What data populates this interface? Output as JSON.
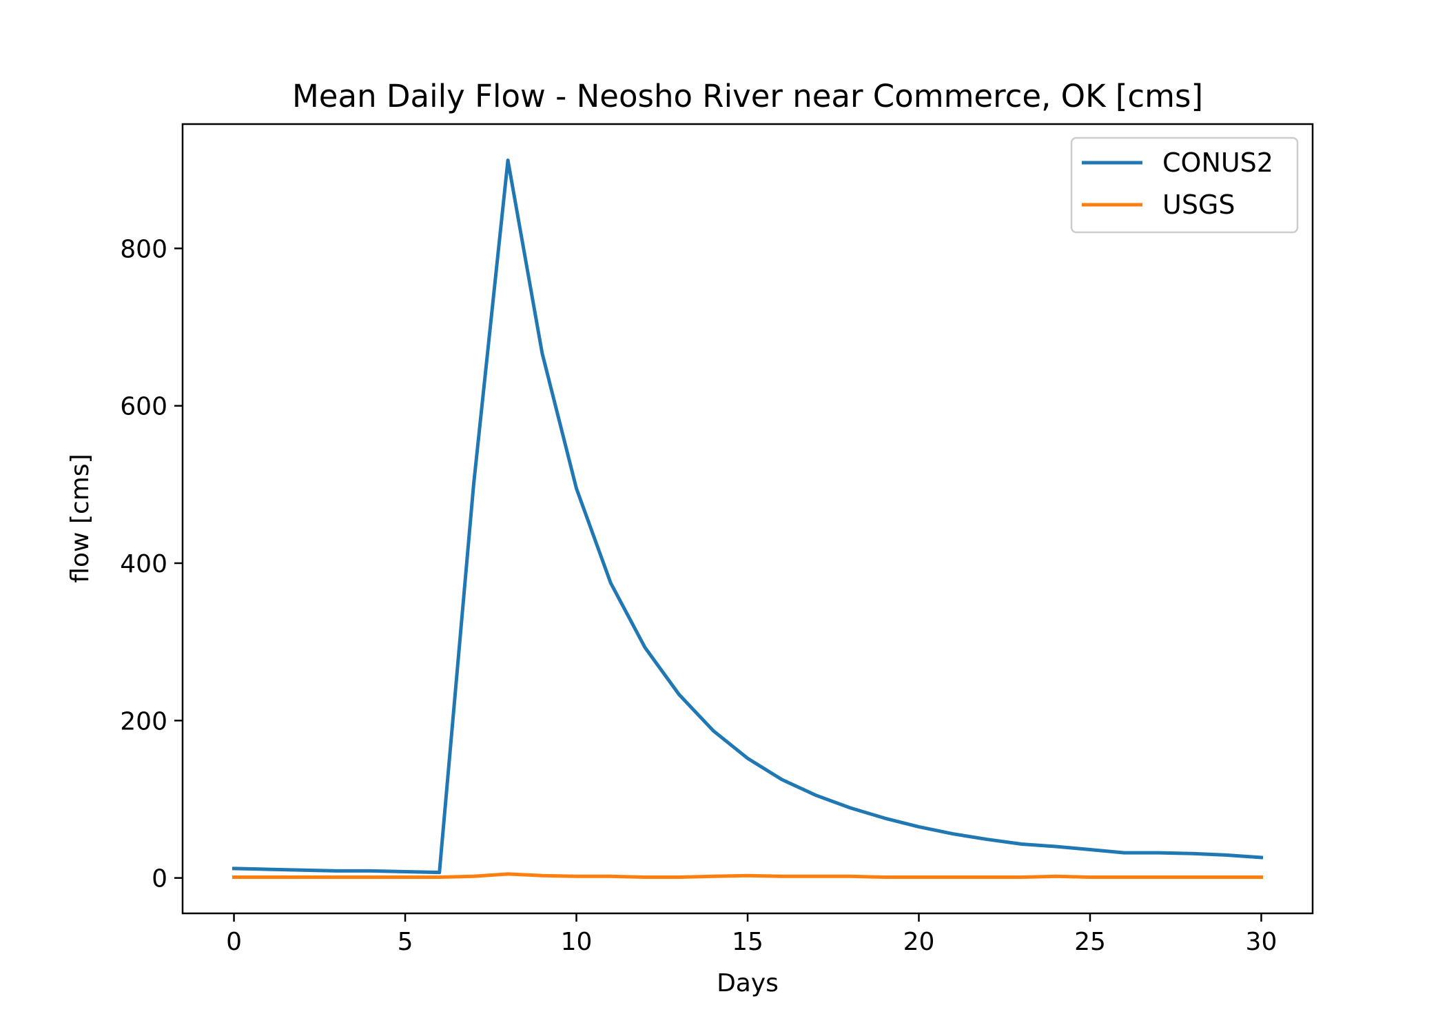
{
  "chart_data": {
    "type": "line",
    "title": "Mean Daily Flow - Neosho River near Commerce, OK [cms]",
    "xlabel": "Days",
    "ylabel": "flow [cms]",
    "xlim": [
      -1.5,
      31.5
    ],
    "ylim": [
      -45,
      958
    ],
    "xticks": [
      0,
      5,
      10,
      15,
      20,
      25,
      30
    ],
    "yticks": [
      0,
      200,
      400,
      600,
      800
    ],
    "grid": false,
    "legend_position": "top-right",
    "x": [
      0,
      1,
      2,
      3,
      4,
      5,
      6,
      7,
      8,
      9,
      10,
      11,
      12,
      13,
      14,
      15,
      16,
      17,
      18,
      19,
      20,
      21,
      22,
      23,
      24,
      25,
      26,
      27,
      28,
      29,
      30
    ],
    "series": [
      {
        "name": "CONUS2",
        "color": "#1f77b4",
        "values": [
          12,
          11,
          10,
          9,
          9,
          8,
          7,
          500,
          912,
          667,
          495,
          375,
          293,
          233,
          187,
          152,
          125,
          105,
          89,
          76,
          65,
          56,
          49,
          43,
          40,
          36,
          32,
          32,
          31,
          29,
          26
        ]
      },
      {
        "name": "USGS",
        "color": "#ff7f0e",
        "values": [
          1,
          1,
          1,
          1,
          1,
          1,
          1,
          2,
          5,
          3,
          2,
          2,
          1,
          1,
          2,
          3,
          2,
          2,
          2,
          1,
          1,
          1,
          1,
          1,
          2,
          1,
          1,
          1,
          1,
          1,
          1
        ]
      }
    ]
  }
}
